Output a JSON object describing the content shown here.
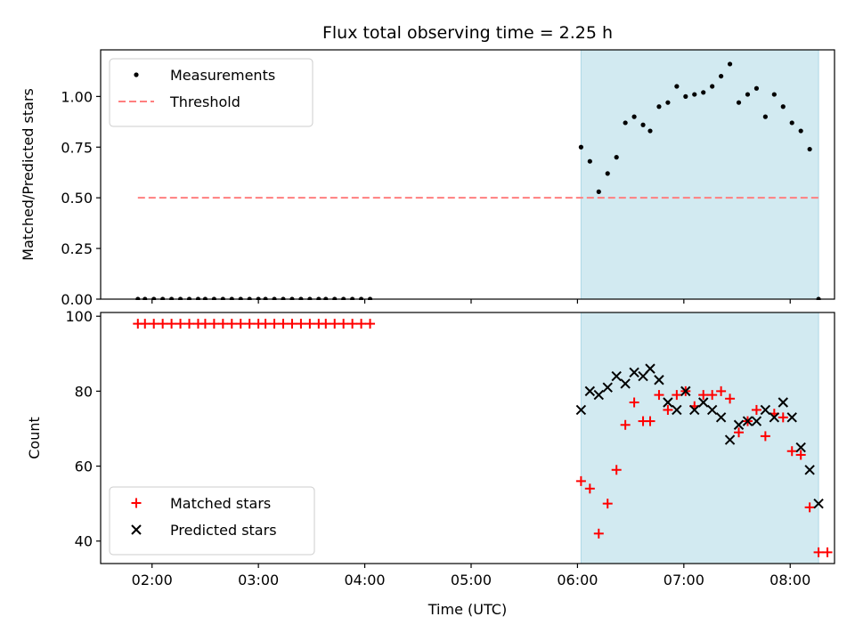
{
  "chart_data": {
    "type": "scatter",
    "title": "Flux total observing time = 2.25 h",
    "xlabel": "Time (UTC)",
    "x_ticks": [
      "02:00",
      "03:00",
      "04:00",
      "05:00",
      "06:00",
      "07:00",
      "08:00"
    ],
    "x_tick_values": [
      120,
      180,
      240,
      300,
      360,
      420,
      480
    ],
    "xlim": [
      91,
      505
    ],
    "highlight_span": {
      "x": [
        362,
        496
      ],
      "color": "#add8e6"
    },
    "panels": [
      {
        "ylabel": "Matched/Predicted stars",
        "ylim": [
          0.0,
          1.23
        ],
        "y_ticks": [
          "0.00",
          "0.25",
          "0.50",
          "0.75",
          "1.00"
        ],
        "y_tick_values": [
          0.0,
          0.25,
          0.5,
          0.75,
          1.0
        ],
        "legend": "top-left",
        "series": [
          {
            "name": "Measurements",
            "marker": "dot",
            "color": "#000000",
            "points": [
              [
                112,
                0.0
              ],
              [
                116,
                0.0
              ],
              [
                121,
                0.0
              ],
              [
                126,
                0.0
              ],
              [
                131,
                0.0
              ],
              [
                136,
                0.0
              ],
              [
                141,
                0.0
              ],
              [
                146,
                0.0
              ],
              [
                150,
                0.0
              ],
              [
                155,
                0.0
              ],
              [
                160,
                0.0
              ],
              [
                165,
                0.0
              ],
              [
                170,
                0.0
              ],
              [
                175,
                0.0
              ],
              [
                180,
                0.0
              ],
              [
                184,
                0.0
              ],
              [
                189,
                0.0
              ],
              [
                194,
                0.0
              ],
              [
                199,
                0.0
              ],
              [
                204,
                0.0
              ],
              [
                209,
                0.0
              ],
              [
                214,
                0.0
              ],
              [
                218,
                0.0
              ],
              [
                223,
                0.0
              ],
              [
                228,
                0.0
              ],
              [
                233,
                0.0
              ],
              [
                238,
                0.0
              ],
              [
                243,
                0.0
              ],
              [
                362,
                0.75
              ],
              [
                367,
                0.68
              ],
              [
                372,
                0.53
              ],
              [
                377,
                0.62
              ],
              [
                382,
                0.7
              ],
              [
                387,
                0.87
              ],
              [
                392,
                0.9
              ],
              [
                397,
                0.86
              ],
              [
                401,
                0.83
              ],
              [
                406,
                0.95
              ],
              [
                411,
                0.97
              ],
              [
                416,
                1.05
              ],
              [
                421,
                1.0
              ],
              [
                426,
                1.01
              ],
              [
                431,
                1.02
              ],
              [
                436,
                1.05
              ],
              [
                441,
                1.1
              ],
              [
                446,
                1.16
              ],
              [
                451,
                0.97
              ],
              [
                456,
                1.01
              ],
              [
                461,
                1.04
              ],
              [
                466,
                0.9
              ],
              [
                471,
                1.01
              ],
              [
                476,
                0.95
              ],
              [
                481,
                0.87
              ],
              [
                486,
                0.83
              ],
              [
                491,
                0.74
              ],
              [
                496,
                0.0
              ]
            ]
          },
          {
            "name": "Threshold",
            "marker": "dashed-line",
            "color": "#ff7f7f",
            "points": [
              [
                112,
                0.5
              ],
              [
                496,
                0.5
              ]
            ]
          }
        ]
      },
      {
        "ylabel": "Count",
        "ylim": [
          34,
          101
        ],
        "y_ticks": [
          "40",
          "60",
          "80",
          "100"
        ],
        "y_tick_values": [
          40,
          60,
          80,
          100
        ],
        "legend": "bottom-left",
        "series": [
          {
            "name": "Matched stars",
            "marker": "plus",
            "color": "#ff0000",
            "points": [
              [
                112,
                98
              ],
              [
                116,
                98
              ],
              [
                121,
                98
              ],
              [
                126,
                98
              ],
              [
                131,
                98
              ],
              [
                136,
                98
              ],
              [
                141,
                98
              ],
              [
                146,
                98
              ],
              [
                150,
                98
              ],
              [
                155,
                98
              ],
              [
                160,
                98
              ],
              [
                165,
                98
              ],
              [
                170,
                98
              ],
              [
                175,
                98
              ],
              [
                180,
                98
              ],
              [
                184,
                98
              ],
              [
                189,
                98
              ],
              [
                194,
                98
              ],
              [
                199,
                98
              ],
              [
                204,
                98
              ],
              [
                209,
                98
              ],
              [
                214,
                98
              ],
              [
                218,
                98
              ],
              [
                223,
                98
              ],
              [
                228,
                98
              ],
              [
                233,
                98
              ],
              [
                238,
                98
              ],
              [
                243,
                98
              ],
              [
                362,
                56
              ],
              [
                367,
                54
              ],
              [
                372,
                42
              ],
              [
                377,
                50
              ],
              [
                382,
                59
              ],
              [
                387,
                71
              ],
              [
                392,
                77
              ],
              [
                397,
                72
              ],
              [
                401,
                72
              ],
              [
                406,
                79
              ],
              [
                411,
                75
              ],
              [
                416,
                79
              ],
              [
                421,
                80
              ],
              [
                426,
                76
              ],
              [
                431,
                79
              ],
              [
                436,
                79
              ],
              [
                441,
                80
              ],
              [
                446,
                78
              ],
              [
                451,
                69
              ],
              [
                456,
                72
              ],
              [
                461,
                75
              ],
              [
                466,
                68
              ],
              [
                471,
                74
              ],
              [
                476,
                73
              ],
              [
                481,
                64
              ],
              [
                486,
                63
              ],
              [
                491,
                49
              ],
              [
                496,
                37
              ],
              [
                501,
                37
              ]
            ]
          },
          {
            "name": "Predicted stars",
            "marker": "x",
            "color": "#000000",
            "points": [
              [
                362,
                75
              ],
              [
                367,
                80
              ],
              [
                372,
                79
              ],
              [
                377,
                81
              ],
              [
                382,
                84
              ],
              [
                387,
                82
              ],
              [
                392,
                85
              ],
              [
                397,
                84
              ],
              [
                401,
                86
              ],
              [
                406,
                83
              ],
              [
                411,
                77
              ],
              [
                416,
                75
              ],
              [
                421,
                80
              ],
              [
                426,
                75
              ],
              [
                431,
                77
              ],
              [
                436,
                75
              ],
              [
                441,
                73
              ],
              [
                446,
                67
              ],
              [
                451,
                71
              ],
              [
                456,
                72
              ],
              [
                461,
                72
              ],
              [
                466,
                75
              ],
              [
                471,
                73
              ],
              [
                476,
                77
              ],
              [
                481,
                73
              ],
              [
                486,
                65
              ],
              [
                491,
                59
              ],
              [
                496,
                50
              ]
            ]
          }
        ]
      }
    ]
  }
}
